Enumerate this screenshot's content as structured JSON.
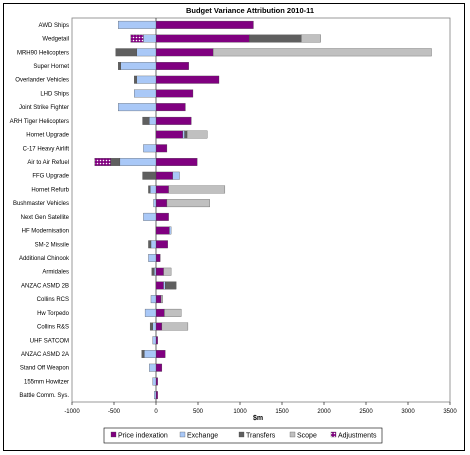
{
  "chart_data": {
    "type": "bar",
    "orientation": "horizontal",
    "stacked": true,
    "title": "Budget Variance Attribution 2010-11",
    "xlabel": "$m",
    "ylabel": "",
    "xlim": [
      -1000,
      3500
    ],
    "xticks": [
      "-1000",
      "-500",
      "0",
      "500",
      "1000",
      "1500",
      "2000",
      "2500",
      "3000",
      "3500"
    ],
    "grid": false,
    "legend_position": "bottom",
    "categories": [
      "AWD Ships",
      "Wedgetail",
      "MRH90 Helicopters",
      "Super Hornet",
      "Overlander Vehicles",
      "LHD Ships",
      "Joint Strike Fighter",
      "ARH Tiger Helicopters",
      "Hornet Upgrade",
      "C-17 Heavy Airlift",
      "Air to Air Refuel",
      "FFG Upgrade",
      "Hornet Refurb",
      "Bushmaster Vehicles",
      "Next Gen Satellite",
      "HF Modernisation",
      "SM-2 Missile",
      "Additional Chinook",
      "Armidales",
      "ANZAC ASMD 2B",
      "Collins RCS",
      "Hw Torpedo",
      "Collins R&S",
      "UHF SATCOM",
      "ANZAC ASMD 2A",
      "Stand Off Weapon",
      "155mm Howitzer",
      "Battle Comm. Sys."
    ],
    "series": [
      {
        "name": "Price indexation",
        "color": "#800080",
        "pattern": "solid",
        "values": [
          1160,
          1110,
          680,
          390,
          750,
          440,
          350,
          420,
          320,
          130,
          490,
          200,
          150,
          130,
          150,
          160,
          140,
          50,
          90,
          90,
          60,
          100,
          70,
          20,
          110,
          70,
          20,
          20
        ]
      },
      {
        "name": "Exchange",
        "color": "#a9c8f7",
        "pattern": "solid",
        "values": [
          -450,
          -150,
          -230,
          -420,
          -230,
          -260,
          -450,
          -80,
          20,
          -150,
          -430,
          80,
          -70,
          -30,
          -150,
          20,
          -60,
          -90,
          -20,
          20,
          -60,
          -130,
          -40,
          -40,
          -140,
          -80,
          -40,
          -20
        ]
      },
      {
        "name": "Transfers",
        "color": "#5f5f5f",
        "pattern": "solid",
        "values": [
          0,
          620,
          -250,
          -30,
          -30,
          0,
          0,
          -80,
          30,
          0,
          -110,
          -160,
          -20,
          0,
          0,
          0,
          -30,
          0,
          -30,
          130,
          0,
          0,
          -30,
          0,
          -30,
          0,
          0,
          0
        ]
      },
      {
        "name": "Scope",
        "color": "#c0c0c0",
        "pattern": "solid",
        "values": [
          0,
          230,
          2600,
          0,
          0,
          0,
          0,
          0,
          240,
          0,
          0,
          0,
          670,
          510,
          0,
          0,
          0,
          0,
          90,
          0,
          20,
          200,
          310,
          0,
          0,
          0,
          0,
          0
        ]
      },
      {
        "name": "Adjustments",
        "color": "#800080",
        "pattern": "dotted",
        "values": [
          0,
          -150,
          0,
          0,
          0,
          0,
          0,
          0,
          0,
          0,
          -190,
          0,
          0,
          0,
          0,
          0,
          0,
          0,
          0,
          0,
          0,
          0,
          0,
          0,
          0,
          0,
          0,
          0
        ]
      }
    ]
  }
}
